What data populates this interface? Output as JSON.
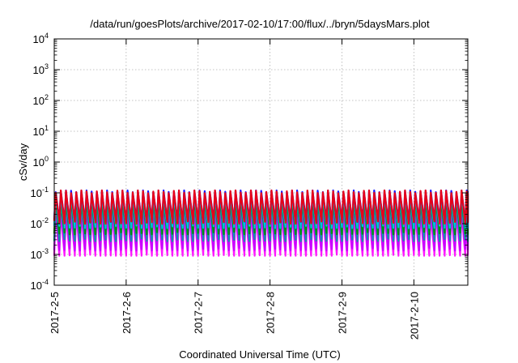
{
  "chart_data": {
    "type": "line",
    "title": "/data/run/goesPlots/archive/2017-02-10/17:00/flux/../bryn/5daysMars.plot",
    "xlabel": "Coordinated Universal Time (UTC)",
    "ylabel": "cSv/day",
    "y_scale": "log",
    "ylim_exponents": [
      -4,
      4
    ],
    "y_tick_labels": [
      {
        "base": "10",
        "exp": "-4"
      },
      {
        "base": "10",
        "exp": "-3"
      },
      {
        "base": "10",
        "exp": "-2"
      },
      {
        "base": "10",
        "exp": "-1"
      },
      {
        "base": "10",
        "exp": "0"
      },
      {
        "base": "10",
        "exp": "1"
      },
      {
        "base": "10",
        "exp": "2"
      },
      {
        "base": "10",
        "exp": "3"
      },
      {
        "base": "10",
        "exp": "4"
      }
    ],
    "x_tick_labels": [
      "2017-2-5",
      "2017-2-6",
      "2017-2-7",
      "2017-2-8",
      "2017-2-9",
      "2017-2-10"
    ],
    "x_range_days": [
      0,
      5.75
    ],
    "grid": true,
    "legend": "none",
    "oscillation": {
      "cycles_per_day": 14,
      "description": "sawtooth oscillation, many overlapping series",
      "max_peak_value": 0.12,
      "min_trough_value": 0.0009
    },
    "series": [
      {
        "color": "#ff00ff",
        "peak": 0.022,
        "trough": 0.0009
      },
      {
        "color": "#c000ff",
        "peak": 0.035,
        "trough": 0.0015
      },
      {
        "color": "#00a0a0",
        "peak": 0.06,
        "trough": 0.003
      },
      {
        "color": "#009000",
        "peak": 0.08,
        "trough": 0.005
      },
      {
        "color": "#00c0ff",
        "peak": 0.09,
        "trough": 0.008
      },
      {
        "color": "#0000ff",
        "peak": 0.12,
        "trough": 0.012
      },
      {
        "color": "#ff0000",
        "peak": 0.11,
        "trough": 0.011
      }
    ]
  }
}
